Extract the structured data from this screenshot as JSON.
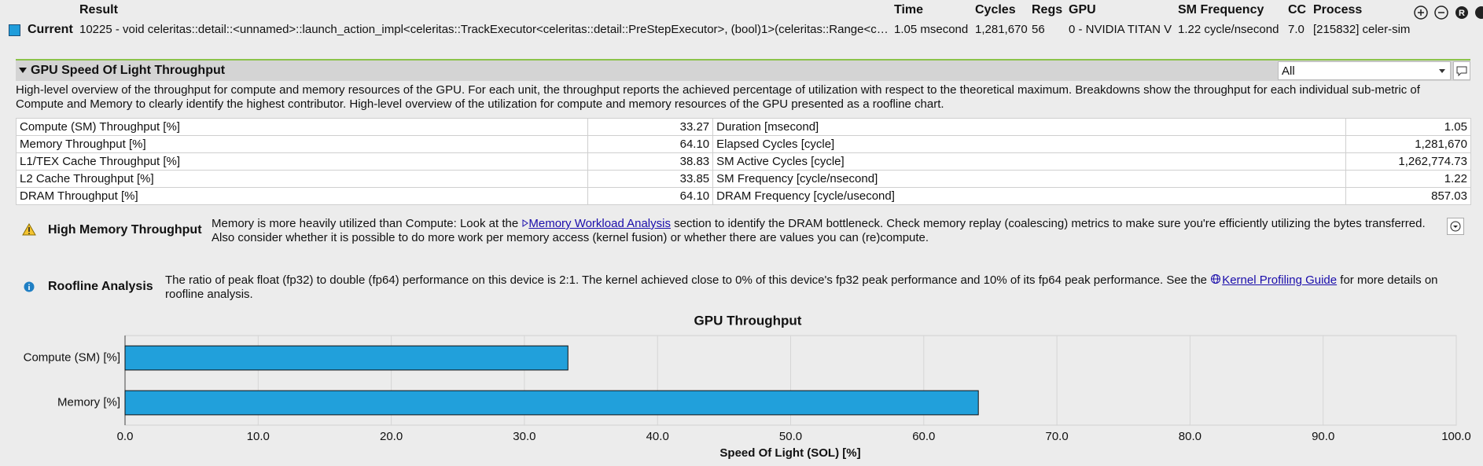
{
  "header": {
    "columns": [
      "Result",
      "Time",
      "Cycles",
      "Regs",
      "GPU",
      "SM Frequency",
      "CC",
      "Process"
    ],
    "current": {
      "label": "Current",
      "result": "10225 - void celeritas::detail::<unnamed>::launch_action_impl<celeritas::TrackExecutor<celeritas::detail::PreStepExecutor>, (bool)1>(celeritas::Range<c…",
      "time": "1.05 msecond",
      "cycles": "1,281,670",
      "regs": "56",
      "gpu": "0 - NVIDIA TITAN V",
      "sm_frequency": "1.22 cycle/nsecond",
      "cc": "7.0",
      "process": "[215832] celer-sim"
    }
  },
  "section": {
    "title": "GPU Speed Of Light Throughput",
    "filter": "All",
    "description": "High-level overview of the throughput for compute and memory resources of the GPU. For each unit, the throughput reports the achieved percentage of utilization with respect to the theoretical maximum. Breakdowns show the throughput for each individual sub-metric of Compute and Memory to clearly identify the highest contributor. High-level overview of the utilization for compute and memory resources of the GPU presented as a roofline chart."
  },
  "table": {
    "rows": [
      [
        "Compute (SM) Throughput [%]",
        "33.27",
        "Duration [msecond]",
        "1.05"
      ],
      [
        "Memory Throughput [%]",
        "64.10",
        "Elapsed Cycles [cycle]",
        "1,281,670"
      ],
      [
        "L1/TEX Cache Throughput [%]",
        "38.83",
        "SM Active Cycles [cycle]",
        "1,262,774.73"
      ],
      [
        "L2 Cache Throughput [%]",
        "33.85",
        "SM Frequency [cycle/nsecond]",
        "1.22"
      ],
      [
        "DRAM Throughput [%]",
        "64.10",
        "DRAM Frequency [cycle/usecond]",
        "857.03"
      ]
    ]
  },
  "messages": [
    {
      "title": "High Memory Throughput",
      "before": "Memory is more heavily utilized than Compute: Look at the ",
      "link": "Memory Workload Analysis",
      "after": " section to identify the DRAM bottleneck. Check memory replay (coalescing) metrics to make sure you're efficiently utilizing the bytes transferred. Also consider whether it is possible to do more work per memory access (kernel fusion) or whether there are values you can (re)compute."
    },
    {
      "title": "Roofline Analysis",
      "before": "The ratio of peak float (fp32) to double (fp64) performance on this device is 2:1. The kernel achieved close to 0% of this device's fp32 peak performance and 10% of its fp64 peak performance. See the ",
      "link": "Kernel Profiling Guide",
      "after": " for more details on roofline analysis."
    }
  ],
  "chart_data": {
    "type": "bar",
    "orientation": "horizontal",
    "title": "GPU Throughput",
    "categories": [
      "Compute (SM) [%]",
      "Memory [%]"
    ],
    "values": [
      33.27,
      64.1
    ],
    "color": "#21a0db",
    "xlabel": "Speed Of Light (SOL) [%]",
    "xlim": [
      0,
      100
    ],
    "xticks": [
      {
        "value": 0,
        "label": "0.0"
      },
      {
        "value": 10,
        "label": "10.0"
      },
      {
        "value": 20,
        "label": "20.0"
      },
      {
        "value": 30,
        "label": "30.0"
      },
      {
        "value": 40,
        "label": "40.0"
      },
      {
        "value": 50,
        "label": "50.0"
      },
      {
        "value": 60,
        "label": "60.0"
      },
      {
        "value": 70,
        "label": "70.0"
      },
      {
        "value": 80,
        "label": "80.0"
      },
      {
        "value": 90,
        "label": "90.0"
      },
      {
        "value": 100,
        "label": "100.0"
      }
    ],
    "grid": true
  }
}
